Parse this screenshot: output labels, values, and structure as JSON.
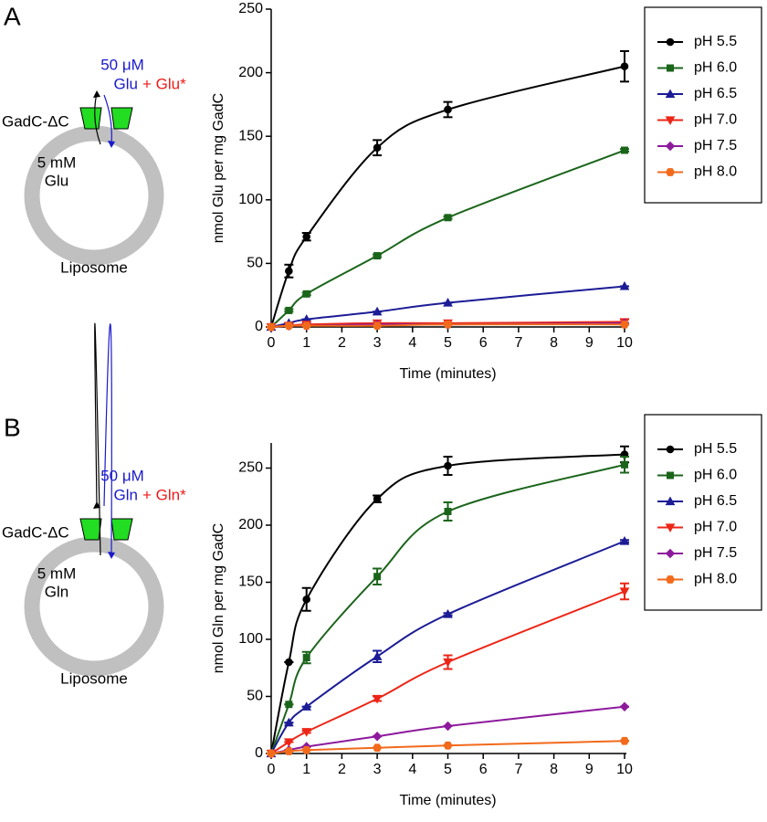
{
  "chart_data": [
    {
      "type": "line",
      "panel": "A",
      "diagram": {
        "conc_out": "50 μM",
        "substrate_out": "Glu",
        "labeled": "+ Glu*",
        "transporter": "GadC-ΔC",
        "conc_in": "5 mM",
        "substrate_in": "Glu",
        "vesicle": "Liposome"
      },
      "x_label": "Time (minutes)",
      "y_label": "nmol Glu per mg GadC",
      "x": [
        0,
        0.5,
        1,
        3,
        5,
        10
      ],
      "xlim": [
        0,
        10
      ],
      "xticks": [
        0,
        1,
        2,
        3,
        4,
        5,
        6,
        7,
        8,
        9,
        10
      ],
      "ylim": [
        0,
        250
      ],
      "yticks": [
        0,
        50,
        100,
        150,
        200,
        250
      ],
      "legend": "outside-right",
      "series": [
        {
          "name": "pH 5.5",
          "color": "#000000",
          "marker": "circle",
          "values": [
            0,
            44,
            71,
            141,
            171,
            205
          ],
          "errors": [
            0,
            5,
            3,
            6,
            6,
            12
          ]
        },
        {
          "name": "pH 6.0",
          "color": "#1b651b",
          "marker": "square",
          "values": [
            0,
            13,
            26,
            56,
            86,
            139
          ],
          "errors": [
            0,
            1,
            1,
            1,
            1,
            1
          ]
        },
        {
          "name": "pH 6.5",
          "color": "#1c1c96",
          "marker": "triangle-up",
          "values": [
            0,
            3,
            6,
            12,
            19,
            32
          ],
          "errors": [
            0,
            0,
            0,
            0,
            0,
            0
          ]
        },
        {
          "name": "pH 7.0",
          "color": "#ec2617",
          "marker": "triangle-down",
          "values": [
            0,
            1,
            2,
            3,
            3,
            4
          ],
          "errors": [
            0,
            0,
            0,
            0,
            0,
            2
          ]
        },
        {
          "name": "pH 7.5",
          "color": "#8d1a9c",
          "marker": "diamond",
          "values": [
            0,
            1,
            1,
            2,
            2,
            3
          ],
          "errors": [
            0,
            0,
            0,
            0,
            0,
            0
          ]
        },
        {
          "name": "pH 8.0",
          "color": "#f26a1b",
          "marker": "hexagon",
          "values": [
            0,
            1,
            1,
            1,
            2,
            2
          ],
          "errors": [
            0,
            0,
            0,
            0,
            0,
            0
          ]
        }
      ]
    },
    {
      "type": "line",
      "panel": "B",
      "diagram": {
        "conc_out": "50 μM",
        "substrate_out": "Gln",
        "labeled": "+ Gln*",
        "transporter": "GadC-ΔC",
        "conc_in": "5 mM",
        "substrate_in": "Gln",
        "vesicle": "Liposome"
      },
      "x_label": "Time (minutes)",
      "y_label": "nmol Gln per mg GadC",
      "x": [
        0,
        0.5,
        1,
        3,
        5,
        10
      ],
      "xlim": [
        0,
        10
      ],
      "xticks": [
        0,
        1,
        2,
        3,
        4,
        5,
        6,
        7,
        8,
        9,
        10
      ],
      "ylim": [
        0,
        272
      ],
      "yticks": [
        0,
        50,
        100,
        150,
        200,
        250
      ],
      "legend": "outside-right",
      "series": [
        {
          "name": "pH 5.5",
          "color": "#000000",
          "marker": "circle",
          "values": [
            0,
            80,
            135,
            223,
            252,
            262
          ],
          "errors": [
            0,
            0,
            10,
            3,
            8,
            7
          ]
        },
        {
          "name": "pH 6.0",
          "color": "#1b651b",
          "marker": "square",
          "values": [
            0,
            43,
            84,
            155,
            212,
            253
          ],
          "errors": [
            0,
            0,
            5,
            7,
            8,
            7
          ]
        },
        {
          "name": "pH 6.5",
          "color": "#1c1c96",
          "marker": "triangle-up",
          "values": [
            0,
            27,
            41,
            85,
            122,
            186
          ],
          "errors": [
            0,
            0,
            0,
            5,
            1,
            1
          ]
        },
        {
          "name": "pH 7.0",
          "color": "#ec2617",
          "marker": "triangle-down",
          "values": [
            0,
            10,
            19,
            48,
            80,
            142
          ],
          "errors": [
            0,
            0,
            1,
            2,
            6,
            7
          ]
        },
        {
          "name": "pH 7.5",
          "color": "#8d1a9c",
          "marker": "diamond",
          "values": [
            0,
            3,
            6,
            15,
            24,
            41
          ],
          "errors": [
            0,
            0,
            0,
            0,
            0,
            0
          ]
        },
        {
          "name": "pH 8.0",
          "color": "#f26a1b",
          "marker": "hexagon",
          "values": [
            0,
            2,
            3,
            5,
            7,
            11
          ],
          "errors": [
            0,
            0,
            0,
            0,
            0,
            0
          ]
        }
      ]
    }
  ]
}
